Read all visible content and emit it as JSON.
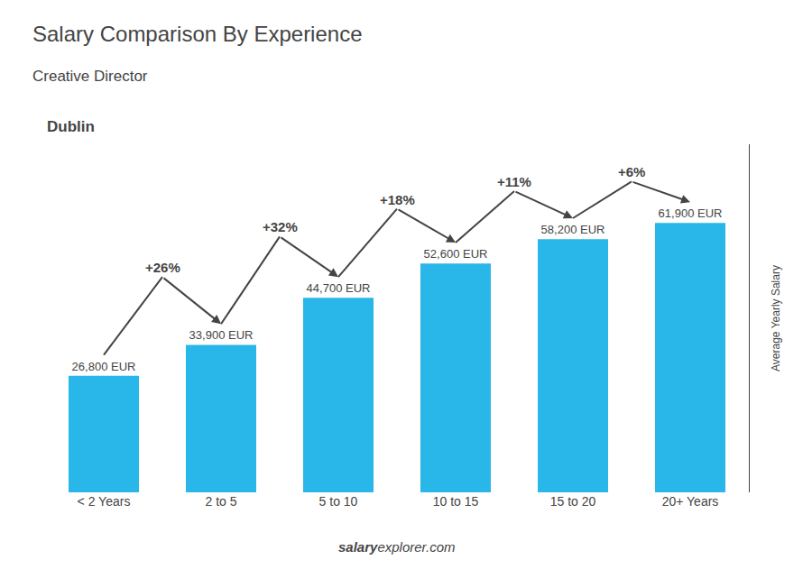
{
  "chart_data": {
    "type": "bar",
    "title": "Salary Comparison By Experience",
    "subtitle": "Creative Director",
    "city": "Dublin",
    "ylabel": "Average Yearly Salary",
    "footer": [
      "salary",
      "explorer.com"
    ],
    "categories": [
      "< 2 Years",
      "2 to 5",
      "5 to 10",
      "10 to 15",
      "15 to 20",
      "20+ Years"
    ],
    "values": [
      26800,
      33900,
      44700,
      52600,
      58200,
      61900
    ],
    "value_labels": [
      "26,800 EUR",
      "33,900 EUR",
      "44,700 EUR",
      "52,600 EUR",
      "58,200 EUR",
      "61,900 EUR"
    ],
    "data_labels": true,
    "annotations": [
      "+26%",
      "+32%",
      "+18%",
      "+11%",
      "+6%"
    ],
    "color": "#29b6e8",
    "ylim": [
      0,
      80000
    ],
    "grid": false,
    "tick_labels": "x"
  }
}
